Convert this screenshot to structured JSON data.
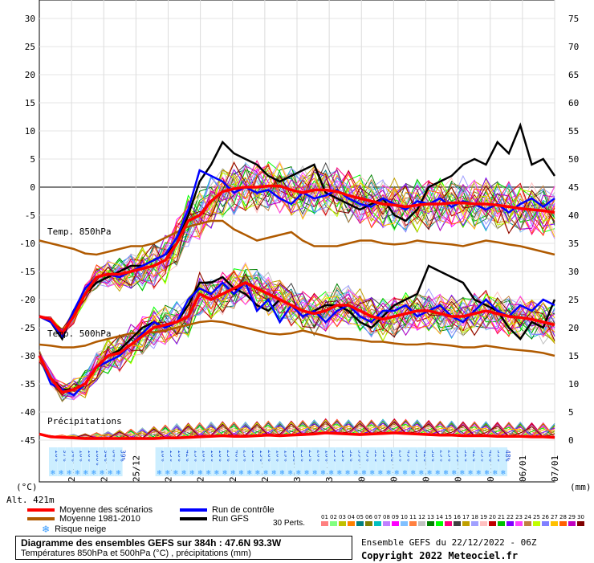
{
  "chart_data": {
    "type": "line",
    "left_axis": {
      "unit": "(°C)",
      "min": -45,
      "max": 30,
      "ticks": [
        "30",
        "25",
        "20",
        "15",
        "10",
        "5",
        "0",
        "-5",
        "-10",
        "-15",
        "-20",
        "-25",
        "-30",
        "-35",
        "-40",
        "-45"
      ]
    },
    "right_axis": {
      "unit": "(mm)",
      "ticks": [
        "75",
        "70",
        "65",
        "60",
        "55",
        "50",
        "45",
        "40",
        "35",
        "30",
        "25",
        "20",
        "15",
        "10",
        "5",
        "0"
      ]
    },
    "x_labels": [
      "23/12",
      "24/12",
      "25/12",
      "26/12",
      "27/12",
      "28/12",
      "29/12",
      "30/12",
      "31/12",
      "01/01",
      "02/01",
      "03/01",
      "04/01",
      "05/01",
      "06/01",
      "07/01"
    ],
    "altitude": "Alt. 421m",
    "annotations": {
      "t850": "Temp. 850hPa",
      "t500": "Temp. 500hPa",
      "precip": "Précipitations"
    },
    "snow_risk": [
      "10%",
      "97%",
      "94%",
      "10%",
      "10%",
      "100%",
      "94%",
      "84%",
      "39%",
      "10%",
      "19%",
      "10%",
      "42%",
      "13%",
      "10%",
      "10%",
      "10%",
      "23%",
      "48%",
      "23%",
      "16%",
      "19%",
      "26%",
      "10%",
      "19%",
      "13%",
      "23%",
      "23%",
      "26%",
      "16%",
      "29%",
      "19%",
      "32%",
      "39%",
      "45%",
      "32%",
      "39%",
      "32%",
      "23%",
      "45%",
      "35%",
      "42%",
      "58%",
      "29%",
      "23%",
      "39%",
      "32%",
      "42%",
      "35%",
      "42%",
      "55%",
      "48%"
    ],
    "series": [
      {
        "name": "Moyenne des scénarios",
        "color": "#ff0000",
        "t850": [
          -23,
          -23.5,
          -26,
          -23,
          -19,
          -16,
          -15.5,
          -15.5,
          -15,
          -14.5,
          -14,
          -13,
          -10,
          -6,
          -5,
          -2.5,
          -0.8,
          -0.3,
          0,
          0,
          0.2,
          0.2,
          -0.5,
          -1,
          -0.5,
          -0.5,
          -0.8,
          -1.5,
          -2,
          -2.5,
          -3,
          -3.2,
          -3.5,
          -3.2,
          -3,
          -3,
          -2.8,
          -2.8,
          -3,
          -3,
          -3.2,
          -3.5,
          -3.8,
          -4,
          -4.2,
          -4.5
        ],
        "t500": [
          -30,
          -34,
          -36.5,
          -36,
          -35,
          -32,
          -30,
          -29.5,
          -28,
          -26.5,
          -25,
          -24.5,
          -24,
          -23,
          -19,
          -20,
          -19,
          -18,
          -17,
          -18,
          -19,
          -20,
          -21,
          -22,
          -22.5,
          -22,
          -21,
          -21,
          -22,
          -23,
          -23.5,
          -23,
          -22.5,
          -22,
          -22,
          -22.5,
          -23,
          -23,
          -22.5,
          -22,
          -22.5,
          -23,
          -23.2,
          -23.5,
          -24,
          -24.5
        ],
        "precip": [
          0.8,
          0.3,
          0.2,
          0.1,
          0,
          0,
          0,
          0,
          0,
          0,
          0,
          0.1,
          0.1,
          0.2,
          0.3,
          0.4,
          0.5,
          0.4,
          0.4,
          0.5,
          0.6,
          0.5,
          0.6,
          0.7,
          0.8,
          1,
          0.9,
          0.8,
          0.7,
          0.8,
          0.9,
          1,
          0.9,
          0.8,
          0.7,
          0.6,
          0.6,
          0.5,
          0.5,
          0.5,
          0.4,
          0.4,
          0.4,
          0.3,
          0.3,
          0.2
        ]
      },
      {
        "name": "Moyenne 1981-2010",
        "color": "#b05a00",
        "t850": [
          -9.5,
          -10,
          -10.5,
          -11,
          -11.8,
          -12,
          -11.5,
          -11,
          -10.5,
          -10.5,
          -10,
          -9,
          -8,
          -7,
          -6.5,
          -6,
          -6,
          -7.5,
          -8.5,
          -9.5,
          -9,
          -8.5,
          -8,
          -9.5,
          -10.5,
          -10.5,
          -10.5,
          -10,
          -9.5,
          -9.5,
          -10,
          -10.2,
          -10,
          -9.5,
          -9.8,
          -10,
          -10.2,
          -10.5,
          -10,
          -9.5,
          -9.8,
          -10.2,
          -10.5,
          -11,
          -11.5,
          -12
        ],
        "t500": [
          -28,
          -28.2,
          -28.5,
          -28.5,
          -28.2,
          -27.5,
          -27,
          -26.5,
          -26,
          -26,
          -25.8,
          -25.5,
          -25,
          -24.5,
          -24,
          -23.8,
          -24,
          -24.5,
          -25,
          -25.5,
          -26,
          -26.2,
          -26,
          -25.5,
          -26,
          -26.5,
          -27,
          -27,
          -27.2,
          -27.5,
          -27.5,
          -27.8,
          -28,
          -28,
          -27.8,
          -28,
          -28.2,
          -28.5,
          -28.5,
          -28.2,
          -28.5,
          -28.8,
          -29,
          -29.2,
          -29.5,
          -30
        ]
      },
      {
        "name": "Run de contrôle",
        "color": "#0000ff",
        "t850": [
          -23,
          -24,
          -26.5,
          -22,
          -18,
          -16,
          -15.5,
          -16,
          -15,
          -14,
          -13,
          -12,
          -9,
          -4,
          3,
          2,
          1,
          -1,
          0,
          -1,
          -0.5,
          -2,
          -3,
          -1,
          -2,
          -1.5,
          -0.5,
          -2,
          -3,
          -3.5,
          -2,
          -3,
          -4,
          -2.5,
          -3,
          -2,
          -3.5,
          -2.5,
          -3,
          -4,
          -3,
          -4.5,
          -3,
          -2,
          -3.5,
          -2
        ],
        "t500": [
          -30,
          -35,
          -36,
          -37,
          -35,
          -32,
          -31,
          -30,
          -28,
          -26,
          -24,
          -25,
          -24,
          -20,
          -18,
          -19,
          -17,
          -19,
          -17,
          -22,
          -20,
          -24,
          -21,
          -23,
          -22,
          -24,
          -22,
          -21,
          -23,
          -24,
          -22,
          -22,
          -21,
          -23,
          -22,
          -21,
          -23,
          -24,
          -22,
          -20,
          -22,
          -23,
          -21,
          -22,
          -20,
          -21
        ]
      },
      {
        "name": "Run GFS",
        "color": "#000000",
        "t850": [
          -23,
          -24,
          -27,
          -22,
          -19,
          -17,
          -16,
          -15,
          -14,
          -14,
          -13,
          -12,
          -10,
          -5,
          1,
          4,
          8,
          6,
          5,
          4,
          2,
          1,
          2,
          3,
          4,
          -1,
          -2,
          -3,
          -4,
          -3,
          -2,
          -5,
          -6,
          -4,
          0,
          1,
          2,
          4,
          5,
          4,
          8,
          6,
          11,
          4,
          5,
          2
        ],
        "t500": [
          -30,
          -34,
          -36,
          -36,
          -35,
          -32,
          -30,
          -29,
          -27,
          -25,
          -24,
          -25,
          -24,
          -21,
          -17,
          -17,
          -16,
          -18,
          -19,
          -21,
          -22,
          -20,
          -21,
          -23,
          -22,
          -21,
          -21,
          -22,
          -24,
          -25,
          -23,
          -21,
          -20,
          -19,
          -14,
          -15,
          -16,
          -17,
          -20,
          -21,
          -22,
          -25,
          -27,
          -24,
          -25,
          -20
        ]
      }
    ],
    "legend": [
      {
        "label": "Moyenne des scénarios",
        "color": "#ff0000"
      },
      {
        "label": "Moyenne 1981-2010",
        "color": "#b05a00"
      },
      {
        "label": "Risque neige",
        "icon": "snowflake-icon",
        "color": "#3399ff"
      },
      {
        "label": "Run de contrôle",
        "color": "#0000ff"
      },
      {
        "label": "Run GFS",
        "color": "#000000"
      }
    ],
    "members_label": "30 Perts.",
    "member_ids": [
      "01",
      "02",
      "03",
      "04",
      "05",
      "06",
      "07",
      "08",
      "09",
      "10",
      "11",
      "12",
      "13",
      "14",
      "15",
      "16",
      "17",
      "18",
      "19",
      "20",
      "21",
      "22",
      "23",
      "24",
      "25",
      "26",
      "27",
      "28",
      "29",
      "30"
    ],
    "member_colors": [
      "#ff8080",
      "#80ff80",
      "#c0c000",
      "#ff8000",
      "#008080",
      "#808000",
      "#00c0c0",
      "#c080ff",
      "#ff00ff",
      "#80c0ff",
      "#ff8040",
      "#c0c0c0",
      "#008000",
      "#00ff00",
      "#ff0080",
      "#404040",
      "#c0a000",
      "#a0a0ff",
      "#ffc0c0",
      "#c00000",
      "#00c000",
      "#8000ff",
      "#ff40ff",
      "#c08040",
      "#c0ff00",
      "#8080ff",
      "#ffc000",
      "#ff6000",
      "#c000c0",
      "#800000"
    ],
    "title": "Diagramme des ensembles GEFS sur 384h : 47.6N 93.3W",
    "subtitle": "Températures 850hPa et 500hPa (°C) , précipitations (mm)",
    "run_info": "Ensemble GEFS du 22/12/2022 - 06Z",
    "copyright": "Copyright 2022 Meteociel.fr"
  }
}
